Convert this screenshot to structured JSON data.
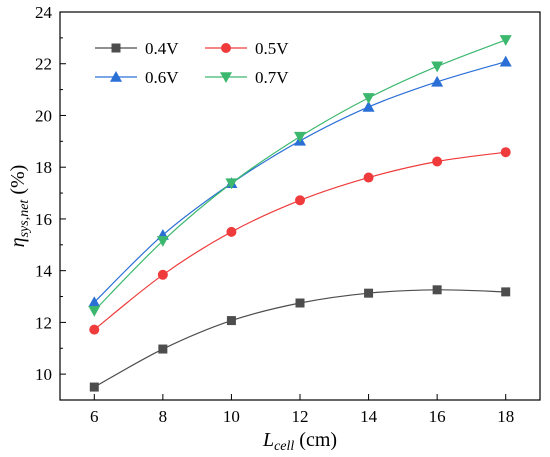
{
  "chart_data": {
    "type": "line",
    "x": [
      6,
      8,
      10,
      12,
      14,
      16,
      18
    ],
    "xlim": [
      5,
      19
    ],
    "ylim": [
      9,
      24
    ],
    "xticks": [
      6,
      8,
      10,
      12,
      14,
      16,
      18
    ],
    "yticks": [
      10,
      12,
      14,
      16,
      18,
      20,
      22,
      24
    ],
    "xlabel": {
      "main": "L",
      "sub": "cell",
      "unit": " (cm)"
    },
    "ylabel": {
      "main": "η",
      "sub": "sys,net",
      "unit": " (%)"
    },
    "grid": false,
    "legend_position": "top-left",
    "series": [
      {
        "name": "0.4V",
        "marker": "square",
        "color": "#4d4d4d",
        "values": [
          9.5,
          10.97,
          12.07,
          12.75,
          13.13,
          13.26,
          13.18
        ]
      },
      {
        "name": "0.5V",
        "marker": "circle",
        "color": "#ef3b3b",
        "values": [
          11.72,
          13.84,
          15.5,
          16.72,
          17.6,
          18.22,
          18.58
        ]
      },
      {
        "name": "0.6V",
        "marker": "triangle-up",
        "color": "#2a6fd6",
        "values": [
          12.78,
          15.38,
          17.38,
          19.02,
          20.33,
          21.3,
          22.08
        ]
      },
      {
        "name": "0.7V",
        "marker": "triangle-down",
        "color": "#3cb86e",
        "values": [
          12.45,
          15.15,
          17.38,
          19.18,
          20.68,
          21.9,
          22.92
        ]
      }
    ]
  }
}
